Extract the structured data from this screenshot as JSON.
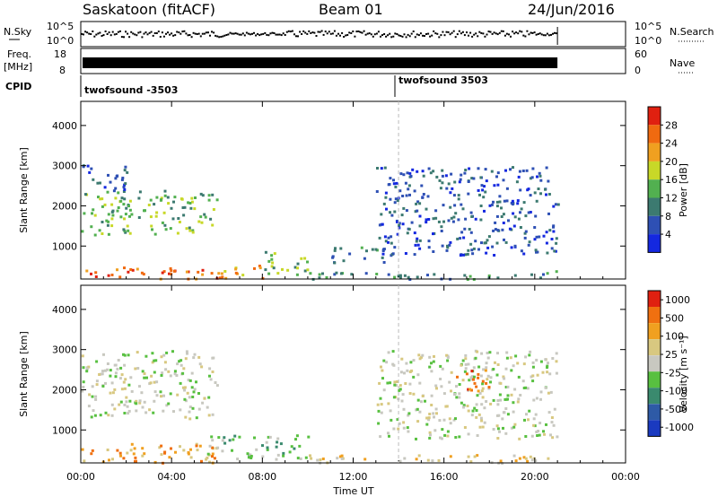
{
  "header": {
    "station": "Saskatoon (fitACF)",
    "beam": "Beam 01",
    "date": "24/Jun/2016"
  },
  "strips": {
    "nsky": {
      "label": "N.Sky",
      "left_ticks": [
        "10^5",
        "10^0"
      ],
      "right_ticks": [
        "10^5",
        "10^0"
      ],
      "right_label": "N.Search"
    },
    "freq": {
      "label_line1": "Freq.",
      "label_line2": "[MHz]",
      "left_ticks": [
        "18",
        "8"
      ],
      "right_ticks": [
        "60",
        "0"
      ],
      "right_label": "Nave"
    },
    "cpid": {
      "label": "CPID",
      "entries": [
        {
          "name": "twofsound -3503",
          "start_hour": 0.0
        },
        {
          "name": "twofsound 3503",
          "start_hour": 14.0
        }
      ]
    }
  },
  "chart_data": [
    {
      "type": "heatmap",
      "name": "Power",
      "ylabel": "Slant Range [km]",
      "xlabel": "Time UT",
      "xlim": [
        0,
        24
      ],
      "ylim": [
        180,
        4600
      ],
      "x_ticks": [
        "00:00",
        "04:00",
        "08:00",
        "12:00",
        "16:00",
        "20:00",
        "00:00"
      ],
      "y_ticks": [
        1000,
        2000,
        3000,
        4000
      ],
      "colorbar": {
        "label": "Power [dB]",
        "ticks": [
          "4",
          "8",
          "12",
          "16",
          "20",
          "24",
          "28"
        ],
        "colors": [
          "#1428e0",
          "#2e50b4",
          "#3c7a70",
          "#52b050",
          "#c8d828",
          "#f0a020",
          "#f06a10",
          "#e02010"
        ]
      },
      "data_end_hour": 21.0,
      "regions": [
        {
          "t": [
            0.0,
            6.0
          ],
          "r": [
            200,
            500
          ],
          "level": 6
        },
        {
          "t": [
            6.0,
            8.0
          ],
          "r": [
            200,
            600
          ],
          "level": 5
        },
        {
          "t": [
            8.0,
            10.0
          ],
          "r": [
            300,
            900
          ],
          "level": 3
        },
        {
          "t": [
            10.0,
            21.0
          ],
          "r": [
            200,
            400
          ],
          "level": 2
        },
        {
          "t": [
            0.0,
            6.0
          ],
          "r": [
            1300,
            2400
          ],
          "level": 3
        },
        {
          "t": [
            0.0,
            2.0
          ],
          "r": [
            2400,
            3100
          ],
          "level": 1
        },
        {
          "t": [
            13.0,
            21.0
          ],
          "r": [
            800,
            3000
          ],
          "level": 1
        },
        {
          "t": [
            11.0,
            13.5
          ],
          "r": [
            600,
            1000
          ],
          "level": 2
        }
      ]
    },
    {
      "type": "heatmap",
      "name": "Velocity",
      "ylabel": "Slant Range [km]",
      "xlabel": "Time UT",
      "xlim": [
        0,
        24
      ],
      "ylim": [
        180,
        4600
      ],
      "x_ticks": [
        "00:00",
        "04:00",
        "08:00",
        "12:00",
        "16:00",
        "20:00",
        "00:00"
      ],
      "y_ticks": [
        1000,
        2000,
        3000,
        4000
      ],
      "colorbar": {
        "label": "Velocity [m s⁻¹]",
        "ticks": [
          "1000",
          "500",
          "100",
          "25",
          "-25",
          "-100",
          "-500",
          "-1000"
        ],
        "colors": [
          "#1a3ac0",
          "#2e5aa6",
          "#3a8a6e",
          "#58c040",
          "#c8c8c0",
          "#d8c880",
          "#f0a020",
          "#f07010",
          "#e02010"
        ]
      },
      "data_end_hour": 21.0,
      "regions": [
        {
          "t": [
            0.0,
            6.0
          ],
          "r": [
            200,
            700
          ],
          "level": 6
        },
        {
          "t": [
            5.5,
            10.0
          ],
          "r": [
            300,
            900
          ],
          "level": 3
        },
        {
          "t": [
            10.0,
            21.0
          ],
          "r": [
            200,
            400
          ],
          "level": 5
        },
        {
          "t": [
            0.0,
            6.0
          ],
          "r": [
            1300,
            3000
          ],
          "level": 4
        },
        {
          "t": [
            13.0,
            21.0
          ],
          "r": [
            800,
            3000
          ],
          "level": 4
        },
        {
          "t": [
            16.5,
            18.0
          ],
          "r": [
            2000,
            2600
          ],
          "level": 7
        }
      ]
    }
  ],
  "time_axis": {
    "labels": [
      "00:00",
      "04:00",
      "08:00",
      "12:00",
      "16:00",
      "20:00",
      "00:00"
    ],
    "xlabel": "Time UT"
  }
}
